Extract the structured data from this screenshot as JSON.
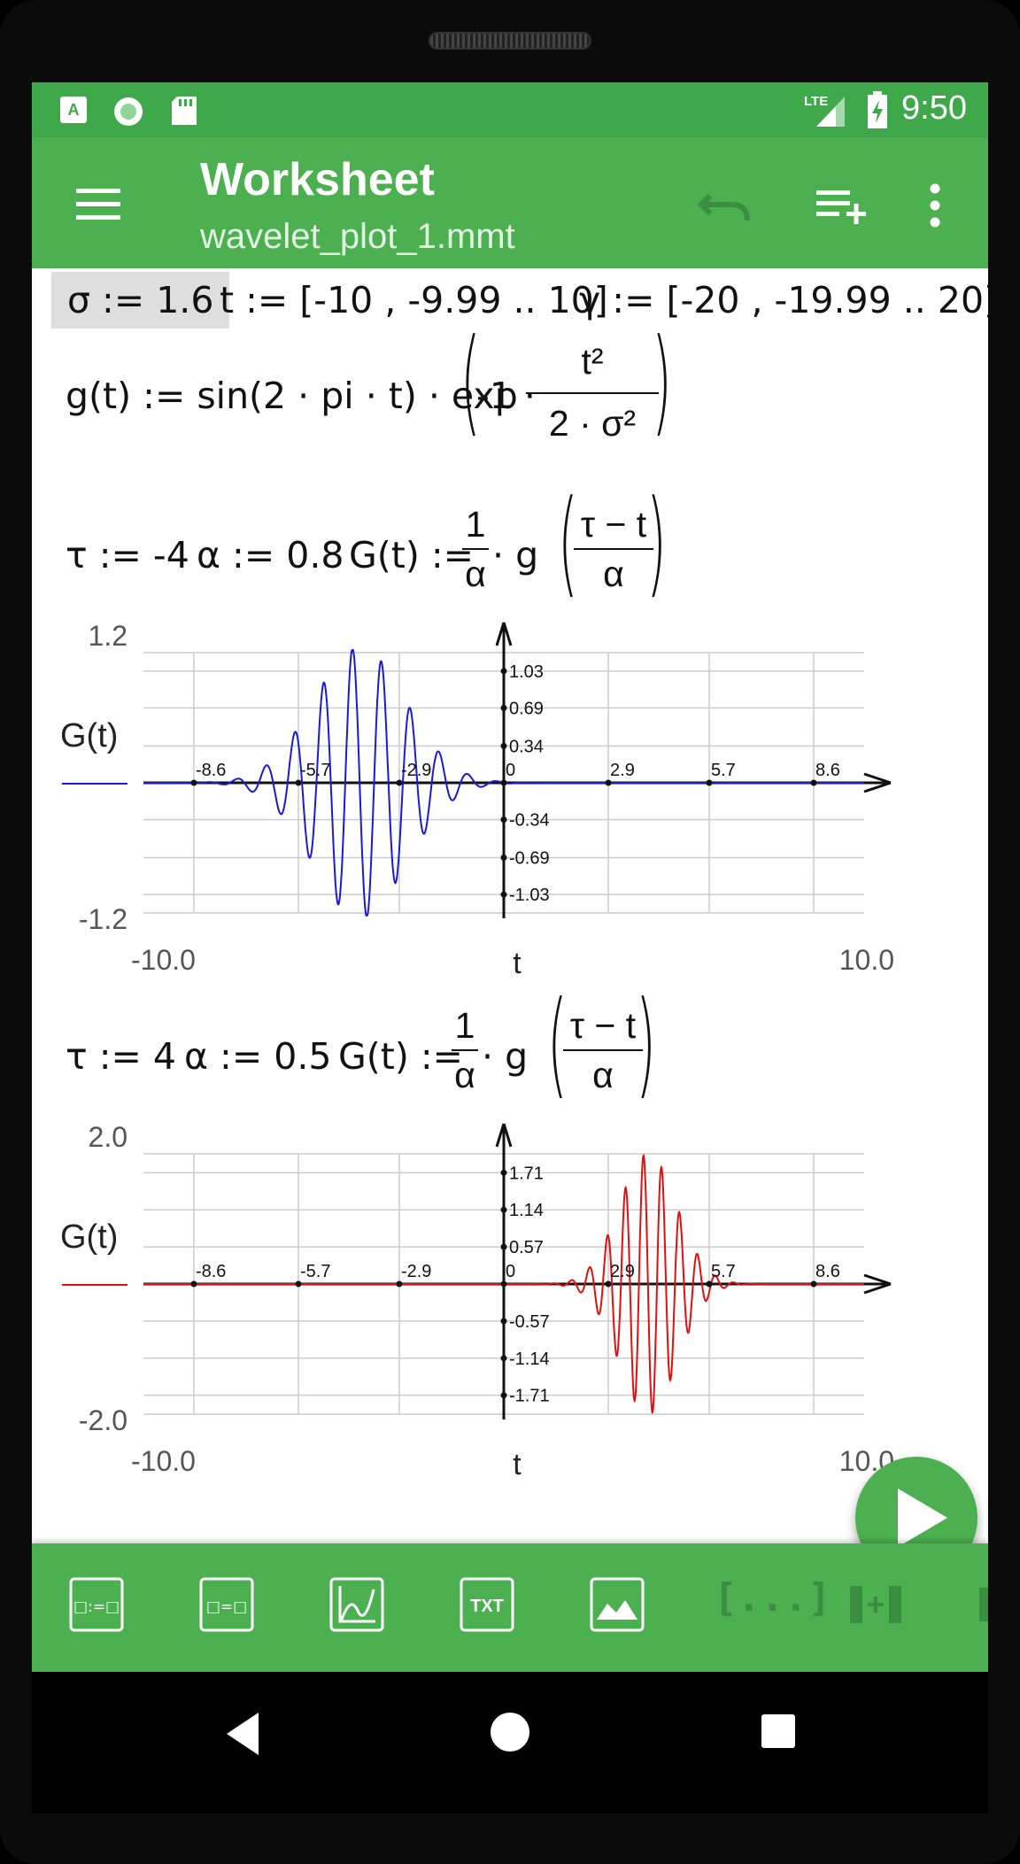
{
  "status_bar": {
    "time": "9:50",
    "network": "LTE"
  },
  "app_bar": {
    "title": "Worksheet",
    "subtitle": "wavelet_plot_1.mmt"
  },
  "worksheet": {
    "row1": {
      "sigma_def": "σ := 1.6",
      "t_def": "t := [-10 , -9.99 .. 10]",
      "gamma_def": "γ := [-20 , -19.99 .. 20]"
    },
    "g_def": {
      "lhs": "g(t) := sin(2 · pi · t) · exp",
      "neg": "-1 ·",
      "num": "t²",
      "den": "2 · σ²"
    },
    "block1": {
      "tau": "τ := -4",
      "alpha": "α := 0.8",
      "lhs": "G(t) :=",
      "frac_num": "1",
      "frac_den": "α",
      "g": "· g",
      "arg_num": "τ − t",
      "arg_den": "α"
    },
    "block2": {
      "tau": "τ := 4",
      "alpha": "α := 0.5",
      "lhs": "G(t) :=",
      "frac_num": "1",
      "frac_den": "α",
      "g": "· g",
      "arg_num": "τ − t",
      "arg_den": "α"
    }
  },
  "chart_data": [
    {
      "type": "line",
      "ylabel": "G(t)",
      "xlabel": "t",
      "xlim": [
        -10.0,
        10.0
      ],
      "ylim": [
        -1.2,
        1.2
      ],
      "x_ticks": [
        "-8.6",
        "-5.7",
        "-2.9",
        "0",
        "2.9",
        "5.7",
        "8.6"
      ],
      "y_ticks": [
        "1.03",
        "0.69",
        "0.34",
        "-0.34",
        "-0.69",
        "-1.03"
      ],
      "x_min_label": "-10.0",
      "x_max_label": "10.0",
      "y_max_label": "1.2",
      "y_min_label": "-1.2",
      "grid": true,
      "color": "#1a1ad6",
      "function": {
        "tau": -4,
        "alpha": 0.8,
        "sigma": 1.6
      }
    },
    {
      "type": "line",
      "ylabel": "G(t)",
      "xlabel": "t",
      "xlim": [
        -10.0,
        10.0
      ],
      "ylim": [
        -2.0,
        2.0
      ],
      "x_ticks": [
        "-8.6",
        "-5.7",
        "-2.9",
        "0",
        "2.9",
        "5.7",
        "8.6"
      ],
      "y_ticks": [
        "1.71",
        "1.14",
        "0.57",
        "-0.57",
        "-1.14",
        "-1.71"
      ],
      "x_min_label": "-10.0",
      "x_max_label": "10.0",
      "y_max_label": "2.0",
      "y_min_label": "-2.0",
      "grid": true,
      "color": "#e01010",
      "function": {
        "tau": 4,
        "alpha": 0.5,
        "sigma": 1.6
      }
    }
  ],
  "toolbar": {
    "items": [
      {
        "icon": "define-equation-icon",
        "label": "□:=□"
      },
      {
        "icon": "evaluate-equation-icon",
        "label": "□=□"
      },
      {
        "icon": "plot-icon",
        "label": ""
      },
      {
        "icon": "text-icon",
        "label": "TXT"
      },
      {
        "icon": "image-icon",
        "label": ""
      },
      {
        "icon": "matrix-icon",
        "label": "[...]"
      },
      {
        "icon": "insert-column-icon",
        "label": ""
      }
    ]
  },
  "colors": {
    "accent": "#4caf50",
    "status_bar": "#3fa84b"
  }
}
